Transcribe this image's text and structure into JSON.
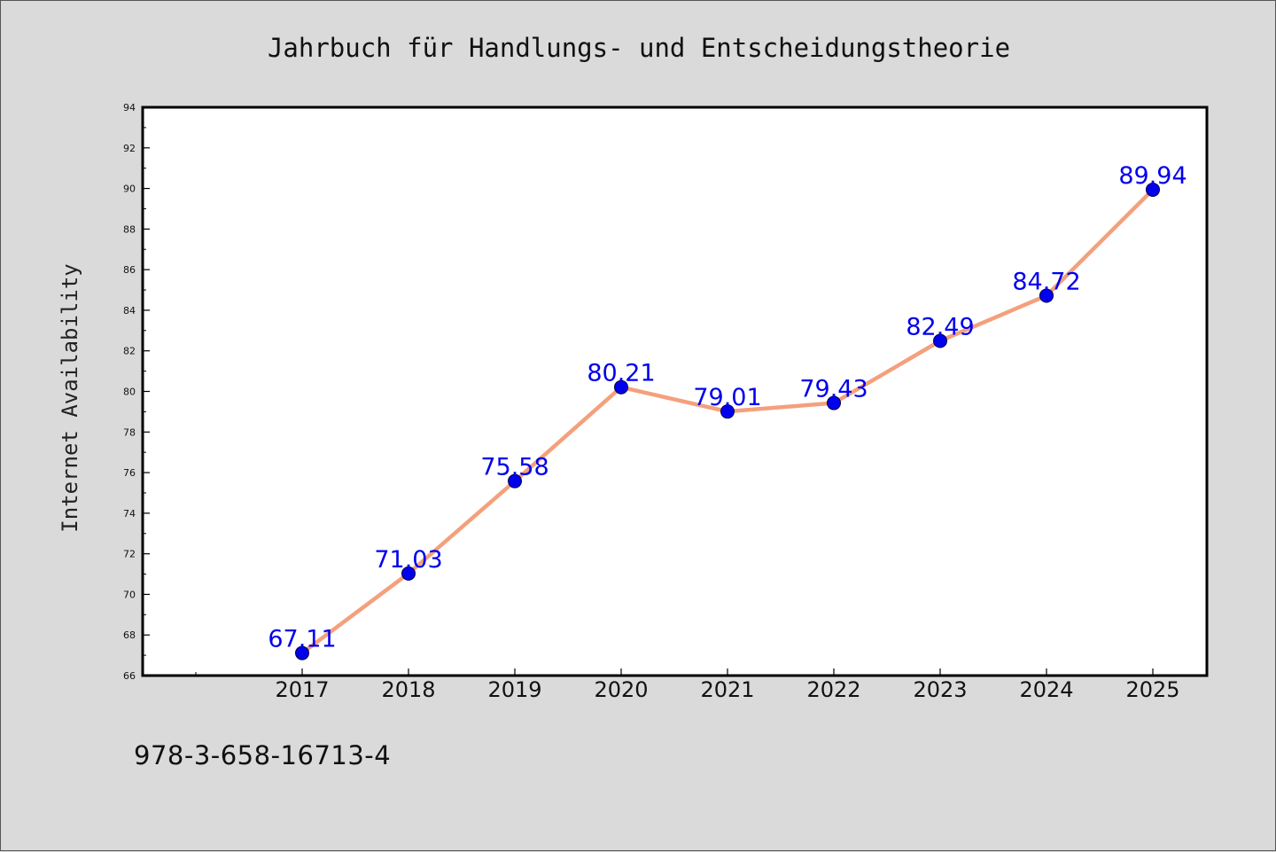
{
  "footer_text": "978-3-658-16713-4",
  "chart_data": {
    "type": "line",
    "title": "Jahrbuch für Handlungs- und Entscheidungstheorie",
    "xlabel": "",
    "ylabel": "Internet Availability",
    "categories": [
      "2017",
      "2018",
      "2019",
      "2020",
      "2021",
      "2022",
      "2023",
      "2024",
      "2025"
    ],
    "series": [
      {
        "values": [
          67.11,
          71.03,
          75.58,
          80.21,
          79.01,
          79.43,
          82.49,
          84.72,
          89.94
        ],
        "data_labels": [
          "67.11",
          "71.03",
          "75.58",
          "80.21",
          "79.01",
          "79.43",
          "82.49",
          "84.72",
          "89.94"
        ],
        "line_color": "#f4a07c",
        "marker_color": "#0000ee",
        "label_color": "#0000ee"
      }
    ],
    "ylim": [
      66,
      94
    ],
    "yticks": [
      "66",
      "68",
      "70",
      "72",
      "74",
      "76",
      "78",
      "80",
      "82",
      "84",
      "86",
      "88",
      "90",
      "92",
      "94"
    ],
    "grid": false,
    "legend": "none",
    "plot_background": "#ffffff",
    "page_background": "#dadada"
  }
}
